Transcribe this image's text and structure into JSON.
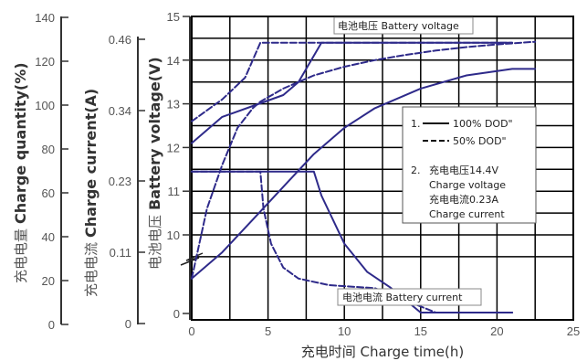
{
  "chart_data": {
    "type": "line",
    "xlabel": "充电时间 Charge time(h)",
    "x_ticks": [
      "0",
      "5",
      "10",
      "15",
      "20",
      "25"
    ],
    "xlim": [
      0,
      25
    ],
    "axes": {
      "voltage": {
        "label_cn": "电池电压",
        "label_en": "Battery voltage(V)",
        "ticks": [
          "15",
          "14",
          "13",
          "12",
          "11",
          "10",
          "0"
        ],
        "ylim": [
          9,
          15
        ]
      },
      "current": {
        "label_cn": "充电电流",
        "label_en": "Charge current(A)",
        "ticks": [
          "0.46",
          "0.34",
          "0.23",
          "0.11",
          "0"
        ]
      },
      "quantity": {
        "label_cn": "充电电量",
        "label_en": "Charge quantity(%)",
        "ticks": [
          "140",
          "120",
          "100",
          "80",
          "60",
          "40",
          "20",
          "0"
        ]
      }
    },
    "annotations": {
      "voltage_label": "电池电压 Battery voltage",
      "current_label": "电池电流 Battery current"
    },
    "legend": {
      "solid": "100% DOD\"",
      "dashed": "50% DOD\"",
      "num1": "1.",
      "num2": "2.",
      "note_cv_cn": "充电电压14.4V",
      "note_cv_en": "Charge voltage",
      "note_cc_cn": "充电电流0.23A",
      "note_cc_en": "Charge current"
    },
    "series": [
      {
        "kind": "voltage",
        "style": "solid",
        "x": [
          0,
          2,
          4,
          6,
          7,
          8.5,
          21
        ],
        "y": [
          12.1,
          12.7,
          12.95,
          13.2,
          13.5,
          14.4,
          14.4
        ]
      },
      {
        "kind": "voltage",
        "style": "dashed",
        "x": [
          0,
          2,
          3.5,
          4.5,
          21
        ],
        "y": [
          12.6,
          13.1,
          13.6,
          14.4,
          14.4
        ]
      },
      {
        "kind": "quantity",
        "style": "solid",
        "x": [
          0,
          2,
          4,
          6,
          8,
          10,
          12,
          15,
          18,
          21,
          22.5
        ],
        "y": [
          9.0,
          9.6,
          10.35,
          11.1,
          11.85,
          12.45,
          12.9,
          13.35,
          13.65,
          13.8,
          13.8
        ]
      },
      {
        "kind": "quantity",
        "style": "dashed",
        "x": [
          0,
          1,
          2,
          3,
          4,
          4.5,
          6,
          8,
          10,
          12,
          14,
          16,
          18,
          20,
          22.5
        ],
        "y": [
          9.0,
          10.6,
          11.6,
          12.45,
          12.9,
          13.05,
          13.35,
          13.65,
          13.85,
          14.0,
          14.12,
          14.22,
          14.3,
          14.36,
          14.42
        ]
      },
      {
        "kind": "current",
        "style": "solid",
        "x": [
          0,
          8,
          8.5,
          10,
          11.5,
          13,
          15,
          21
        ],
        "y": [
          11.45,
          11.45,
          10.9,
          9.8,
          9.15,
          8.8,
          8.75,
          8.75
        ]
      },
      {
        "kind": "current",
        "style": "dashed",
        "x": [
          0,
          4.5,
          4.7,
          5.2,
          6,
          7,
          9,
          12,
          16,
          21
        ],
        "y": [
          11.45,
          11.45,
          10.6,
          9.8,
          9.25,
          9.0,
          8.85,
          8.78,
          8.75,
          8.75
        ]
      }
    ]
  }
}
